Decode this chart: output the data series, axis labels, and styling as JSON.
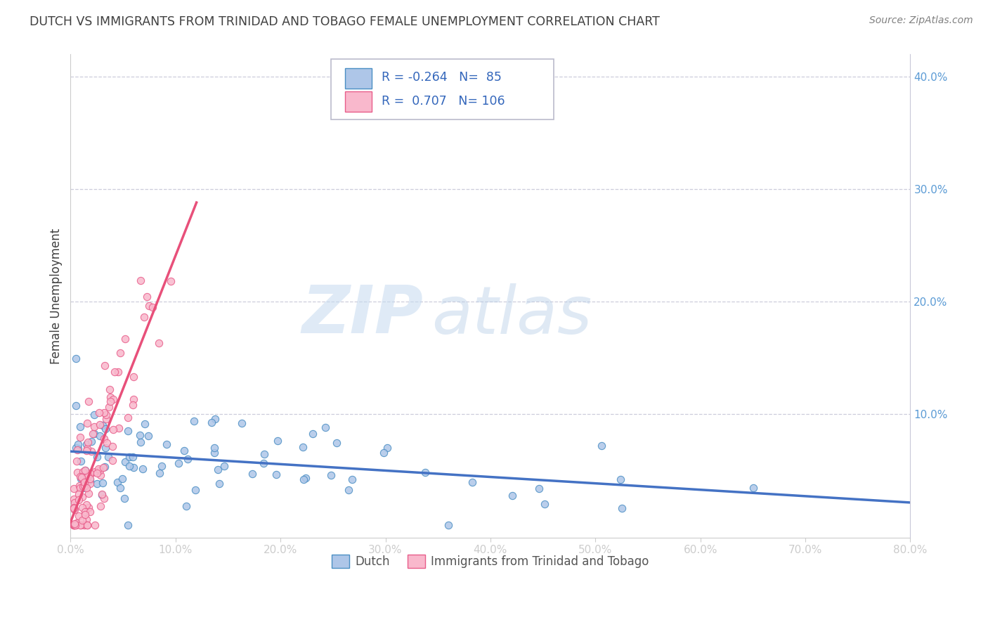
{
  "title": "DUTCH VS IMMIGRANTS FROM TRINIDAD AND TOBAGO FEMALE UNEMPLOYMENT CORRELATION CHART",
  "source": "Source: ZipAtlas.com",
  "ylabel": "Female Unemployment",
  "xlim": [
    0.0,
    0.8
  ],
  "ylim": [
    -0.01,
    0.42
  ],
  "xtick_labels": [
    "0.0%",
    "10.0%",
    "20.0%",
    "30.0%",
    "40.0%",
    "50.0%",
    "60.0%",
    "70.0%",
    "80.0%"
  ],
  "xtick_vals": [
    0.0,
    0.1,
    0.2,
    0.3,
    0.4,
    0.5,
    0.6,
    0.7,
    0.8
  ],
  "ytick_labels": [
    "10.0%",
    "20.0%",
    "30.0%",
    "40.0%"
  ],
  "ytick_vals": [
    0.1,
    0.2,
    0.3,
    0.4
  ],
  "dutch_color": "#aec6e8",
  "dutch_edge_color": "#4b8fc4",
  "immigrant_color": "#f9b8cc",
  "immigrant_edge_color": "#e85d8a",
  "dutch_R": -0.264,
  "dutch_N": 85,
  "immigrant_R": 0.707,
  "immigrant_N": 106,
  "dutch_line_color": "#4472c4",
  "immigrant_line_color": "#e8507a",
  "legend_dutch_label": "Dutch",
  "legend_immigrant_label": "Immigrants from Trinidad and Tobago",
  "watermark_zip": "ZIP",
  "watermark_atlas": "atlas",
  "background_color": "#ffffff",
  "grid_color": "#c8c8d8",
  "title_color": "#404040",
  "source_color": "#808080",
  "axis_label_color": "#404040",
  "tick_color": "#5b9bd5"
}
